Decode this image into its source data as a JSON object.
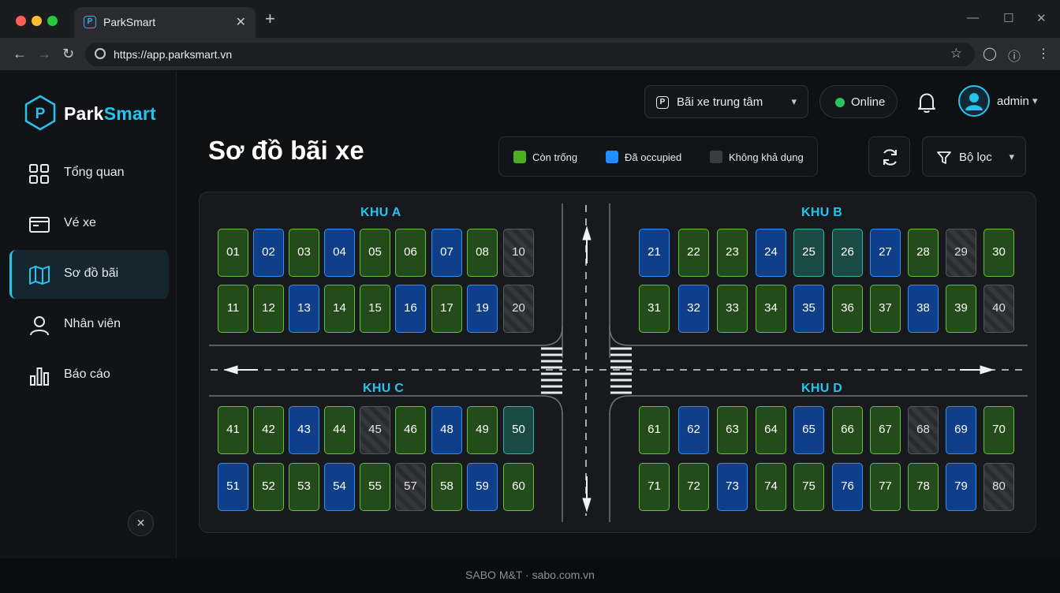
{
  "browser": {
    "tab_title": "ParkSmart",
    "url": "https://app.parksmart.vn"
  },
  "brand": {
    "name_part1": "Park",
    "name_part2": "Smart"
  },
  "sidebar": {
    "items": [
      {
        "label": "Tổng quan",
        "icon": "grid-icon",
        "active": false
      },
      {
        "label": "Vé xe",
        "icon": "ticket-icon",
        "active": false
      },
      {
        "label": "Sơ đồ bãi",
        "icon": "map-icon",
        "active": true
      },
      {
        "label": "Nhân viên",
        "icon": "user-icon",
        "active": false
      },
      {
        "label": "Báo cáo",
        "icon": "bar-chart-icon",
        "active": false
      }
    ]
  },
  "header": {
    "lot_select": "Bãi xe trung tâm",
    "status": "Online",
    "user": "admin"
  },
  "page": {
    "title": "Sơ đồ bãi xe"
  },
  "legend": {
    "free": "Còn trống",
    "occupied": "Đã occupied",
    "unavailable": "Không khả dụng"
  },
  "filter": {
    "label": "Bộ lọc"
  },
  "colors": {
    "accent": "#24c4ef",
    "free": "#4caf23",
    "occupied": "#1f8fff",
    "unavailable": "#3a3c40",
    "online": "#22c55e"
  },
  "zones": {
    "a": {
      "title": "KHU A",
      "rows": [
        [
          [
            "01",
            "free"
          ],
          [
            "02",
            "occ"
          ],
          [
            "03",
            "free"
          ],
          [
            "04",
            "occ"
          ],
          [
            "05",
            "free"
          ],
          [
            "06",
            "free"
          ],
          [
            "07",
            "occ"
          ],
          [
            "08",
            "free"
          ],
          [
            "10",
            "na"
          ]
        ],
        [
          [
            "11",
            "free"
          ],
          [
            "12",
            "free"
          ],
          [
            "13",
            "occ"
          ],
          [
            "14",
            "free"
          ],
          [
            "15",
            "free"
          ],
          [
            "16",
            "occ"
          ],
          [
            "17",
            "free"
          ],
          [
            "19",
            "occ"
          ],
          [
            "20",
            "na"
          ]
        ]
      ]
    },
    "b": {
      "title": "KHU B",
      "rows": [
        [
          [
            "21",
            "occ"
          ],
          [
            "22",
            "free"
          ],
          [
            "23",
            "free"
          ],
          [
            "24",
            "occ"
          ],
          [
            "25",
            "teal"
          ],
          [
            "26",
            "teal"
          ],
          [
            "27",
            "occ"
          ],
          [
            "28",
            "free"
          ],
          [
            "29",
            "na"
          ],
          [
            "30",
            "free"
          ]
        ],
        [
          [
            "31",
            "free"
          ],
          [
            "32",
            "occ"
          ],
          [
            "33",
            "free"
          ],
          [
            "34",
            "free"
          ],
          [
            "35",
            "occ"
          ],
          [
            "36",
            "free"
          ],
          [
            "37",
            "free"
          ],
          [
            "38",
            "occ"
          ],
          [
            "39",
            "free"
          ],
          [
            "40",
            "na"
          ]
        ]
      ]
    },
    "c": {
      "title": "KHU C",
      "rows": [
        [
          [
            "41",
            "free"
          ],
          [
            "42",
            "free"
          ],
          [
            "43",
            "occ"
          ],
          [
            "44",
            "free"
          ],
          [
            "45",
            "na"
          ],
          [
            "46",
            "free"
          ],
          [
            "48",
            "occ"
          ],
          [
            "49",
            "free"
          ],
          [
            "50",
            "teal"
          ]
        ],
        [
          [
            "51",
            "occ"
          ],
          [
            "52",
            "free"
          ],
          [
            "53",
            "free"
          ],
          [
            "54",
            "occ"
          ],
          [
            "55",
            "free"
          ],
          [
            "57",
            "na"
          ],
          [
            "58",
            "free"
          ],
          [
            "59",
            "occ"
          ],
          [
            "60",
            "free"
          ]
        ]
      ]
    },
    "d": {
      "title": "KHU D",
      "rows": [
        [
          [
            "61",
            "free"
          ],
          [
            "62",
            "occ"
          ],
          [
            "63",
            "free"
          ],
          [
            "64",
            "free"
          ],
          [
            "65",
            "occ"
          ],
          [
            "66",
            "free"
          ],
          [
            "67",
            "free"
          ],
          [
            "68",
            "na"
          ],
          [
            "69",
            "occ"
          ],
          [
            "70",
            "free"
          ]
        ],
        [
          [
            "71",
            "free"
          ],
          [
            "72",
            "free"
          ],
          [
            "73",
            "occ"
          ],
          [
            "74",
            "free"
          ],
          [
            "75",
            "free"
          ],
          [
            "76",
            "occ"
          ],
          [
            "77",
            "free"
          ],
          [
            "78",
            "free"
          ],
          [
            "79",
            "occ"
          ],
          [
            "80",
            "na"
          ]
        ]
      ]
    }
  },
  "footer": {
    "text": "SABO M&T · sabo.com.vn"
  }
}
